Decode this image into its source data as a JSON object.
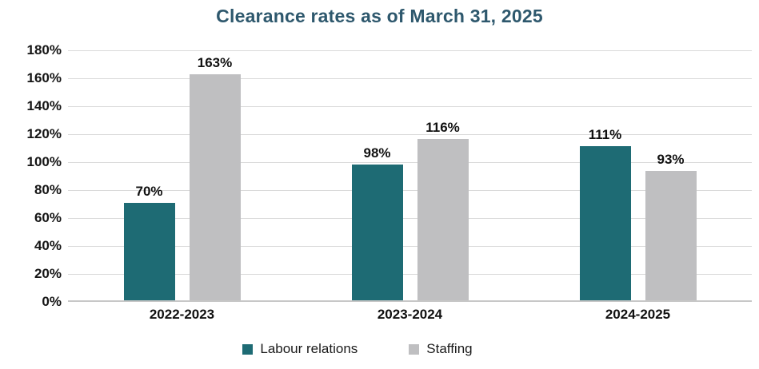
{
  "chart_data": {
    "type": "bar",
    "title": "Clearance rates as of March 31, 2025",
    "categories": [
      "2022-2023",
      "2023-2024",
      "2024-2025"
    ],
    "series": [
      {
        "name": "Labour relations",
        "color": "#1E6B74",
        "values": [
          70,
          98,
          111
        ],
        "value_labels": [
          "70%",
          "98%",
          "111%"
        ]
      },
      {
        "name": "Staffing",
        "color": "#BFBFC1",
        "values": [
          163,
          116,
          93
        ],
        "value_labels": [
          "163%",
          "116%",
          "93%"
        ]
      }
    ],
    "xlabel": "",
    "ylabel": "",
    "ylim": [
      0,
      180
    ],
    "ytick_step": 20,
    "ytick_labels": [
      "180%",
      "160%",
      "140%",
      "120%",
      "100%",
      "80%",
      "60%",
      "40%",
      "20%",
      "0%"
    ],
    "grid": "horizontal",
    "legend_position": "bottom"
  },
  "colors": {
    "title_text": "#2E586D",
    "axis_text": "#151515",
    "gridline": "#DADADA",
    "axis_line": "#C7C7C7"
  }
}
